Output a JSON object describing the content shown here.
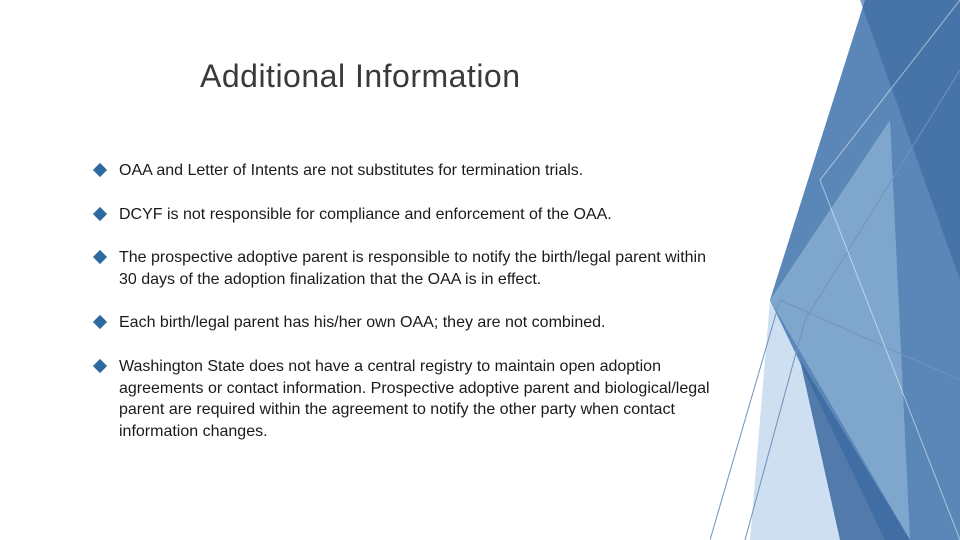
{
  "slide": {
    "title": "Additional Information",
    "title_fontsize": 32,
    "title_color": "#3a3a3a",
    "body_fontsize": 16,
    "body_color": "#1a1a1a",
    "bullet_color": "#2e6aa0",
    "bullets": [
      "OAA and Letter of Intents are not substitutes for termination trials.",
      "DCYF is not responsible for compliance and enforcement of the OAA.",
      "The prospective adoptive parent is responsible to notify the birth/legal parent within 30 days of the adoption finalization that the OAA is in effect.",
      "Each birth/legal parent has his/her own OAA; they are not combined.",
      "Washington State does not have a central registry to maintain open adoption agreements or contact information. Prospective adoptive parent and biological/legal parent are required within the agreement to notify the other party when contact information changes."
    ]
  },
  "decoration": {
    "colors": {
      "dark_blue": "#3c6aa0",
      "mid_blue": "#5a86b8",
      "light_blue": "#8fb3d6",
      "pale_blue": "#cddff0",
      "line_blue": "#6f93bd"
    }
  }
}
